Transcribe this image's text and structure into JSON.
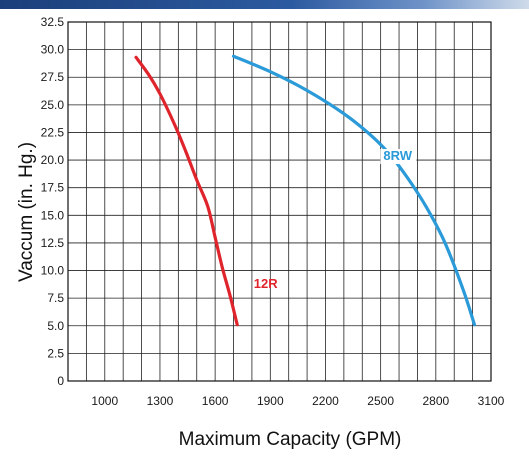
{
  "chart_data": {
    "type": "line",
    "title": "",
    "xlabel": "Maximum Capacity (GPM)",
    "ylabel": "Vaccum (in. Hg.)",
    "xlim": [
      800,
      3100
    ],
    "ylim": [
      0,
      32.5
    ],
    "x_ticks": [
      "1000",
      "1300",
      "1600",
      "1900",
      "2200",
      "2500",
      "2800",
      "3100"
    ],
    "y_ticks": [
      "0",
      "2.5",
      "5.0",
      "7.5",
      "10.0",
      "12.5",
      "15.0",
      "17.5",
      "20.0",
      "22.5",
      "25.0",
      "27.5",
      "30.0",
      "32.5"
    ],
    "grid": true,
    "series": [
      {
        "name": "12R",
        "color": "#e0242c",
        "points": [
          [
            1170,
            29.3
          ],
          [
            1240,
            27.7
          ],
          [
            1300,
            26.0
          ],
          [
            1380,
            23.2
          ],
          [
            1440,
            20.8
          ],
          [
            1500,
            18.2
          ],
          [
            1560,
            15.8
          ],
          [
            1600,
            13.0
          ],
          [
            1640,
            10.2
          ],
          [
            1680,
            7.8
          ],
          [
            1720,
            5.1
          ]
        ]
      },
      {
        "name": "8RW",
        "color": "#2a9ad9",
        "points": [
          [
            1700,
            29.4
          ],
          [
            1900,
            28.0
          ],
          [
            2100,
            26.3
          ],
          [
            2300,
            24.2
          ],
          [
            2450,
            22.2
          ],
          [
            2550,
            20.5
          ],
          [
            2650,
            18.3
          ],
          [
            2750,
            15.7
          ],
          [
            2850,
            12.5
          ],
          [
            2950,
            8.2
          ],
          [
            3010,
            5.1
          ]
        ]
      }
    ]
  }
}
